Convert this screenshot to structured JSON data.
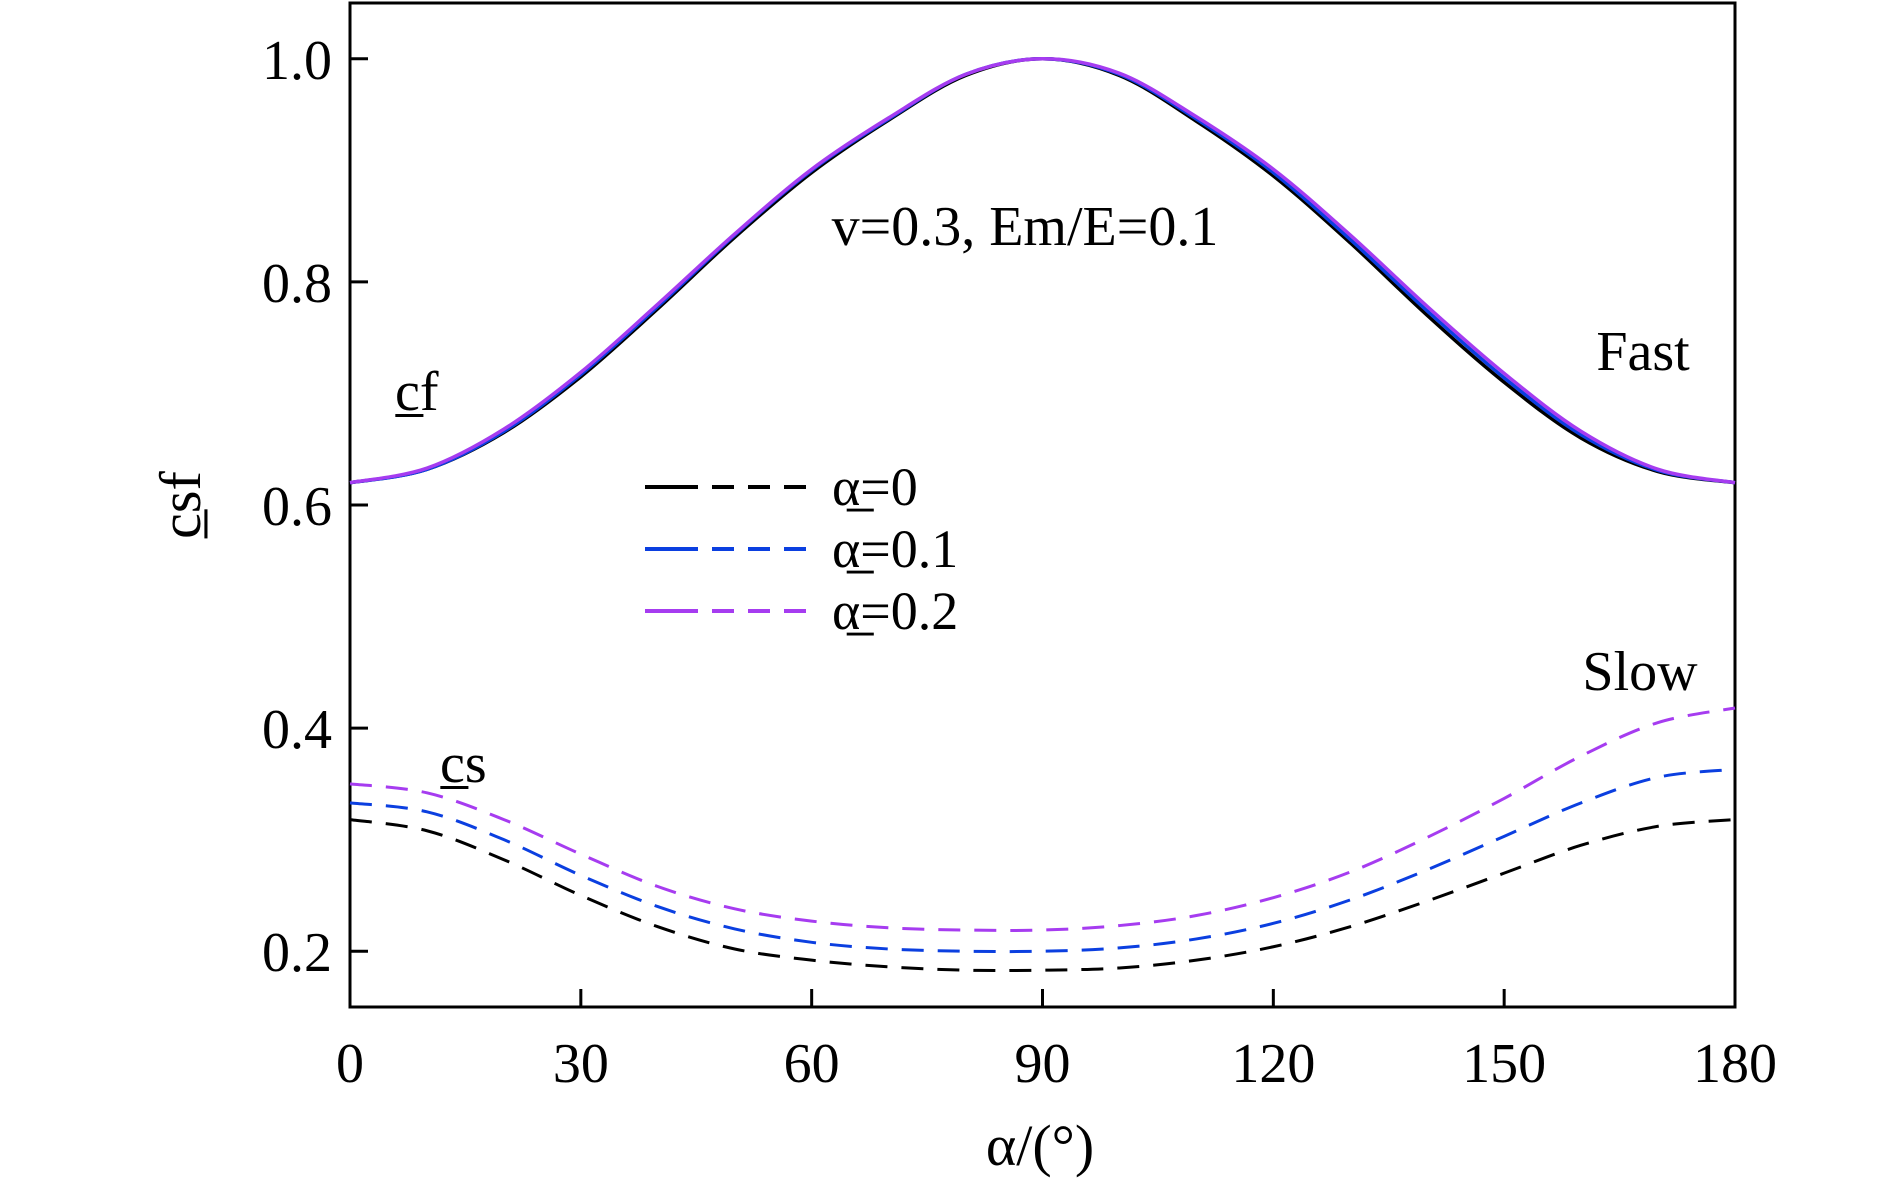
{
  "chart_data": {
    "type": "line",
    "xlabel": "α/(°)",
    "ylabel": "c̲sf",
    "xlim": [
      0,
      180
    ],
    "ylim": [
      0.15,
      1.05
    ],
    "xticks": [
      0,
      30,
      60,
      90,
      120,
      150,
      180
    ],
    "xtick_labels": [
      "0",
      "30",
      "60",
      "90",
      "120",
      "150",
      "180"
    ],
    "yticks": [
      0.2,
      0.4,
      0.6,
      0.8,
      1.0
    ],
    "ytick_labels": [
      "0.2",
      "0.4",
      "0.6",
      "0.8",
      "1.0"
    ],
    "grid": false,
    "legend_position": "center-left",
    "annotations": {
      "params": "v=0.3, Em/E=0.1",
      "fast": "Fast",
      "slow": "Slow",
      "cf_label": "c̲f",
      "cs_label": "c̲s"
    },
    "legend": [
      {
        "label": "α̲=0",
        "color": "#000000"
      },
      {
        "label": "α̲=0.1",
        "color": "#0b3fe0"
      },
      {
        "label": "α̲=0.2",
        "color": "#a63cf0"
      }
    ],
    "x": [
      0,
      10,
      20,
      30,
      40,
      50,
      60,
      70,
      80,
      90,
      100,
      110,
      120,
      130,
      140,
      150,
      160,
      170,
      180
    ],
    "series": [
      {
        "name": "α̲=0",
        "mode": "fast",
        "color": "#000000",
        "values": [
          0.62,
          0.632,
          0.665,
          0.715,
          0.776,
          0.84,
          0.898,
          0.945,
          0.985,
          1.0,
          0.985,
          0.944,
          0.895,
          0.835,
          0.77,
          0.71,
          0.66,
          0.63,
          0.62
        ]
      },
      {
        "name": "α̲=0.1",
        "mode": "fast",
        "color": "#0b3fe0",
        "values": [
          0.62,
          0.632,
          0.666,
          0.717,
          0.778,
          0.842,
          0.9,
          0.946,
          0.986,
          1.0,
          0.986,
          0.946,
          0.898,
          0.838,
          0.774,
          0.714,
          0.663,
          0.631,
          0.62
        ]
      },
      {
        "name": "α̲=0.2",
        "mode": "fast",
        "color": "#a63cf0",
        "values": [
          0.62,
          0.633,
          0.668,
          0.719,
          0.78,
          0.843,
          0.901,
          0.947,
          0.986,
          1.0,
          0.987,
          0.948,
          0.901,
          0.842,
          0.778,
          0.718,
          0.666,
          0.632,
          0.62
        ]
      },
      {
        "name": "α̲=0",
        "mode": "slow",
        "color": "#000000",
        "values": [
          0.318,
          0.308,
          0.282,
          0.25,
          0.222,
          0.202,
          0.192,
          0.186,
          0.183,
          0.183,
          0.185,
          0.192,
          0.204,
          0.222,
          0.245,
          0.27,
          0.295,
          0.312,
          0.318
        ]
      },
      {
        "name": "α̲=0.1",
        "mode": "slow",
        "color": "#0b3fe0",
        "values": [
          0.333,
          0.325,
          0.3,
          0.268,
          0.24,
          0.22,
          0.208,
          0.202,
          0.2,
          0.2,
          0.203,
          0.211,
          0.225,
          0.246,
          0.273,
          0.303,
          0.333,
          0.356,
          0.363
        ]
      },
      {
        "name": "α̲=0.2",
        "mode": "slow",
        "color": "#a63cf0",
        "values": [
          0.35,
          0.342,
          0.318,
          0.287,
          0.258,
          0.238,
          0.227,
          0.221,
          0.219,
          0.219,
          0.223,
          0.232,
          0.248,
          0.271,
          0.302,
          0.337,
          0.375,
          0.405,
          0.418
        ]
      }
    ]
  }
}
